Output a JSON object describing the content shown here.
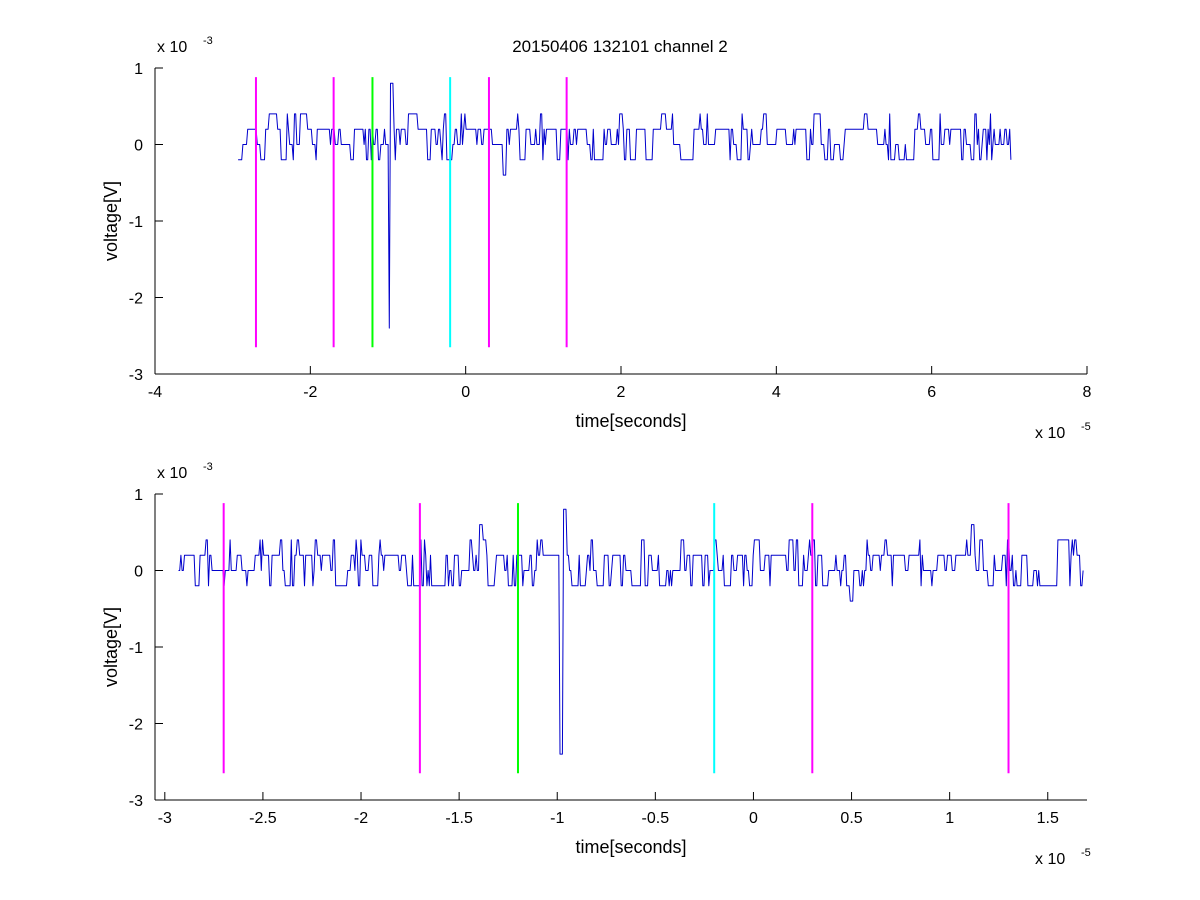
{
  "figure": {
    "title": "20150406 132101 channel 2"
  },
  "chart_data": [
    {
      "type": "line",
      "title": "20150406 132101 channel 2",
      "xlabel": "time[seconds]",
      "ylabel": "voltage[V]",
      "xlim": [
        -4,
        8
      ],
      "ylim": [
        -3,
        1
      ],
      "x_ticks": [
        -4,
        -2,
        0,
        2,
        4,
        6,
        8
      ],
      "x_tick_labels": [
        "-4",
        "-2",
        "0",
        "2",
        "4",
        "6",
        "8"
      ],
      "y_ticks": [
        -3,
        -2,
        -1,
        0,
        1
      ],
      "y_tick_labels": [
        "-3",
        "-2",
        "-1",
        "0",
        "1"
      ],
      "x_exponent_base": "x 10",
      "x_exponent": "-5",
      "y_exponent_base": "x 10",
      "y_exponent": "-3",
      "grid": false,
      "trace": {
        "color": "#0000cc",
        "x_range": [
          -2.93,
          7.02
        ],
        "baseline": 0.15,
        "spikes": [
          {
            "x": -0.97,
            "y": -2.4
          },
          {
            "x": -0.96,
            "y": 0.8
          },
          {
            "x": 0.5,
            "y": -0.4
          }
        ]
      },
      "markers": [
        {
          "x": -2.7,
          "color": "#ff00ff"
        },
        {
          "x": -1.7,
          "color": "#ff00ff"
        },
        {
          "x": -1.2,
          "color": "#00ff00"
        },
        {
          "x": -0.2,
          "color": "#00ffff"
        },
        {
          "x": 0.3,
          "color": "#ff00ff"
        },
        {
          "x": 1.3,
          "color": "#ff00ff"
        }
      ],
      "marker_y_range": [
        -2.65,
        0.88
      ]
    },
    {
      "type": "line",
      "title": "",
      "xlabel": "time[seconds]",
      "ylabel": "voltage[V]",
      "xlim": [
        -3.05,
        1.7
      ],
      "ylim": [
        -3,
        1
      ],
      "x_ticks": [
        -3,
        -2.5,
        -2,
        -1.5,
        -1,
        -0.5,
        0,
        0.5,
        1,
        1.5
      ],
      "x_tick_labels": [
        "-3",
        "-2.5",
        "-2",
        "-1.5",
        "-1",
        "-0.5",
        "0",
        "0.5",
        "1",
        "1.5"
      ],
      "y_ticks": [
        -3,
        -2,
        -1,
        0,
        1
      ],
      "y_tick_labels": [
        "-3",
        "-2",
        "-1",
        "0",
        "1"
      ],
      "x_exponent_base": "x 10",
      "x_exponent": "-5",
      "y_exponent_base": "x 10",
      "y_exponent": "-3",
      "grid": false,
      "trace": {
        "color": "#0000cc",
        "x_range": [
          -2.93,
          1.68
        ],
        "baseline": 0.2,
        "spikes": [
          {
            "x": -0.98,
            "y": -2.4
          },
          {
            "x": -0.96,
            "y": 0.8
          },
          {
            "x": 0.5,
            "y": -0.4
          },
          {
            "x": -1.39,
            "y": 0.6
          },
          {
            "x": 1.12,
            "y": 0.6
          }
        ]
      },
      "markers": [
        {
          "x": -2.7,
          "color": "#ff00ff"
        },
        {
          "x": -1.7,
          "color": "#ff00ff"
        },
        {
          "x": -1.2,
          "color": "#00ff00"
        },
        {
          "x": -0.2,
          "color": "#00ffff"
        },
        {
          "x": 0.3,
          "color": "#ff00ff"
        },
        {
          "x": 1.3,
          "color": "#ff00ff"
        }
      ],
      "marker_y_range": [
        -2.65,
        0.88
      ]
    }
  ]
}
